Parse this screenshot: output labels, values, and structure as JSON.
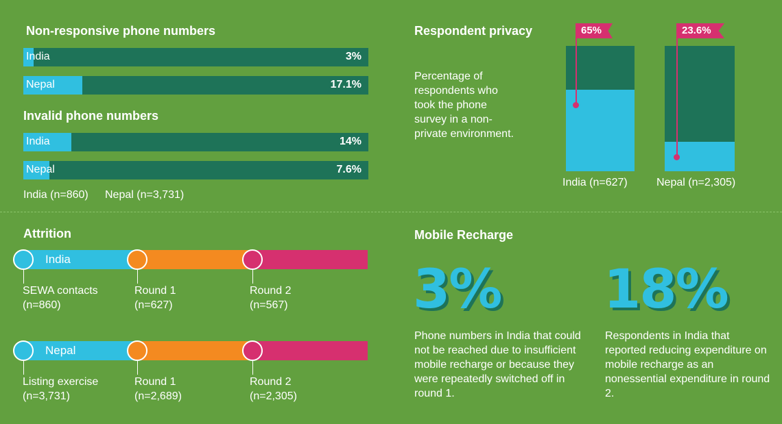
{
  "section_nonresponsive": {
    "title": "Non-responsive phone numbers",
    "bars": [
      {
        "label": "India",
        "value_text": "3%"
      },
      {
        "label": "Nepal",
        "value_text": "17.1%"
      }
    ]
  },
  "section_invalid": {
    "title": "Invalid phone numbers",
    "bars": [
      {
        "label": "India",
        "value_text": "14%"
      },
      {
        "label": "Nepal",
        "value_text": "7.6%"
      }
    ]
  },
  "sample_note": {
    "india": "India (n=860)",
    "nepal": "Nepal (n=3,731)"
  },
  "privacy": {
    "title": "Respondent privacy",
    "description": "Percentage of respondents who took the phone survey in a non-private environment.",
    "columns": [
      {
        "value_text": "65%",
        "label": "India (n=627)"
      },
      {
        "value_text": "23.6%",
        "label": "Nepal (n=2,305)"
      }
    ]
  },
  "attrition": {
    "title": "Attrition",
    "rows": [
      {
        "country": "India",
        "stages": [
          {
            "name": "SEWA contacts",
            "n": "(n=860)"
          },
          {
            "name": "Round 1",
            "n": "(n=627)"
          },
          {
            "name": "Round 2",
            "n": "(n=567)"
          }
        ]
      },
      {
        "country": "Nepal",
        "stages": [
          {
            "name": "Listing exercise",
            "n": "(n=3,731)"
          },
          {
            "name": "Round 1",
            "n": "(n=2,689)"
          },
          {
            "name": "Round 2",
            "n": "(n=2,305)"
          }
        ]
      }
    ]
  },
  "mobile": {
    "title": "Mobile Recharge",
    "stats": [
      {
        "big": "3%",
        "text": "Phone numbers in India that could not be reached due to insufficient mobile recharge or because they were repeatedly switched off in round 1."
      },
      {
        "big": "18%",
        "text": "Respondents in India that reported reducing expenditure on mobile recharge as an nonessential expenditure in round 2."
      }
    ]
  },
  "colors": {
    "background": "#62a03f",
    "dark_green": "#1e7358",
    "cyan": "#30bfe0",
    "orange": "#f48a20",
    "pink": "#d6306f"
  },
  "chart_data": [
    {
      "type": "bar",
      "orientation": "horizontal",
      "title": "Non-responsive phone numbers",
      "categories": [
        "India",
        "Nepal"
      ],
      "values": [
        3,
        17.1
      ],
      "unit": "%",
      "xlim": [
        0,
        100
      ]
    },
    {
      "type": "bar",
      "orientation": "horizontal",
      "title": "Invalid phone numbers",
      "categories": [
        "India",
        "Nepal"
      ],
      "values": [
        14,
        7.6
      ],
      "unit": "%",
      "xlim": [
        0,
        100
      ]
    },
    {
      "type": "bar",
      "orientation": "vertical",
      "stacked": true,
      "title": "Respondent privacy",
      "categories": [
        "India (n=627)",
        "Nepal (n=2,305)"
      ],
      "values": [
        65,
        23.6
      ],
      "unit": "%",
      "ylim": [
        0,
        100
      ]
    }
  ]
}
